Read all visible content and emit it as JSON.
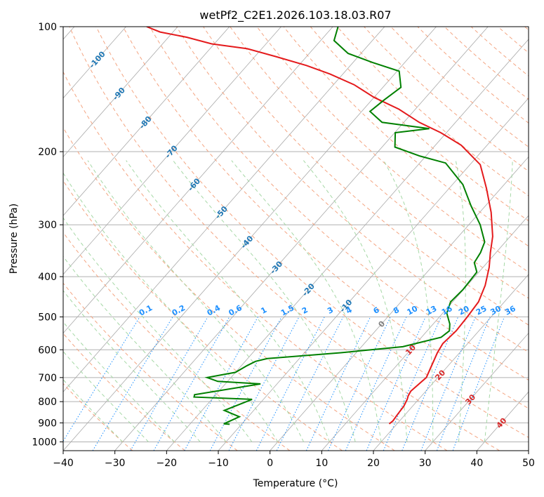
{
  "chart_data": {
    "type": "line",
    "diagram": "skew-t log-p",
    "title": "wetPf2_C2E1.2026.103.18.03.R07",
    "xlabel": "Temperature (°C)",
    "ylabel": "Pressure (hPa)",
    "xlim": [
      -40,
      50
    ],
    "ylim": [
      1050,
      100
    ],
    "yscale": "log",
    "x_ticks": [
      -40,
      -30,
      -20,
      -10,
      0,
      10,
      20,
      30,
      40,
      50
    ],
    "y_ticks": [
      100,
      200,
      300,
      400,
      500,
      600,
      700,
      800,
      900,
      1000
    ],
    "grid": true,
    "series": [
      {
        "color": "#e41a1c",
        "x": [
          18.5,
          18.7,
          18.5,
          18.3,
          17.8,
          17.4,
          17.1,
          17.8,
          16.9,
          15.7,
          15.2,
          15.6,
          15.4,
          15.0,
          13.5,
          11.2,
          8.9,
          6.6,
          2.2,
          -2.8,
          -8.0,
          -15.0,
          -21.1,
          -27.0,
          -33.2,
          -40.0,
          -46.0,
          -52.5,
          -58.5,
          -66.0,
          -72.8,
          -80.5,
          -86.5,
          -92.5,
          -96.0
        ],
        "y": [
          905,
          890,
          860,
          820,
          790,
          775,
          755,
          700,
          660,
          610,
          580,
          540,
          500,
          460,
          420,
          380,
          350,
          320,
          280,
          245,
          215,
          193,
          180,
          170,
          158,
          148,
          138,
          130,
          124,
          118,
          113,
          110,
          106,
          103,
          100
        ]
      },
      {
        "color": "#008000",
        "x": [
          -12.3,
          -13.5,
          -11.7,
          -15.7,
          -12.2,
          -23.8,
          -24.1,
          -13.2,
          -21.9,
          -24.6,
          -20.0,
          -18.9,
          -18.0,
          -16.2,
          -3.0,
          8.0,
          13.8,
          14.3,
          13.2,
          10.8,
          9.6,
          9.9,
          9.6,
          7.5,
          7.0,
          6.0,
          2.2,
          -2.8,
          -8.0,
          -15.0,
          -21.1,
          -27.5,
          -29.9,
          -24.0,
          -34.2,
          -38.4,
          -37.6,
          -36.5,
          -39.6,
          -46.2,
          -52.5,
          -57.4,
          -59.0
        ],
        "y": [
          907,
          905,
          870,
          840,
          790,
          780,
          770,
          725,
          715,
          700,
          680,
          655,
          640,
          630,
          610,
          590,
          560,
          540,
          520,
          490,
          460,
          430,
          390,
          370,
          350,
          330,
          300,
          270,
          240,
          213,
          205,
          195,
          180,
          176,
          170,
          160,
          150,
          140,
          128,
          122,
          116,
          108,
          100
        ]
      }
    ],
    "isotherm_labels": [
      "-100",
      "-90",
      "-80",
      "-70",
      "-60",
      "-50",
      "-40",
      "-30",
      "-20",
      "-10",
      "0",
      "10",
      "20",
      "30",
      "40"
    ],
    "mixing_ratio_labels": [
      "0.1",
      "0.2",
      "0.4",
      "0.6",
      "1",
      "1.5",
      "2",
      "3",
      "4",
      "6",
      "8",
      "10",
      "13",
      "16",
      "20",
      "25",
      "30",
      "36"
    ],
    "mixing_ratio_values": [
      0.1,
      0.2,
      0.4,
      0.6,
      1,
      1.5,
      2,
      3,
      4,
      6,
      8,
      10,
      13,
      16,
      20,
      25,
      30,
      36
    ],
    "colors": {
      "temperature": "#e41a1c",
      "dewpoint": "#008000",
      "isotherm": "#a9a9a9",
      "dry_adiabat": "#f4a582",
      "moist_adiabat": "#a6d8a6",
      "mixing_ratio": "#1e90ff",
      "cold_label": "#1f77b4",
      "warm_label": "#d62728"
    }
  }
}
